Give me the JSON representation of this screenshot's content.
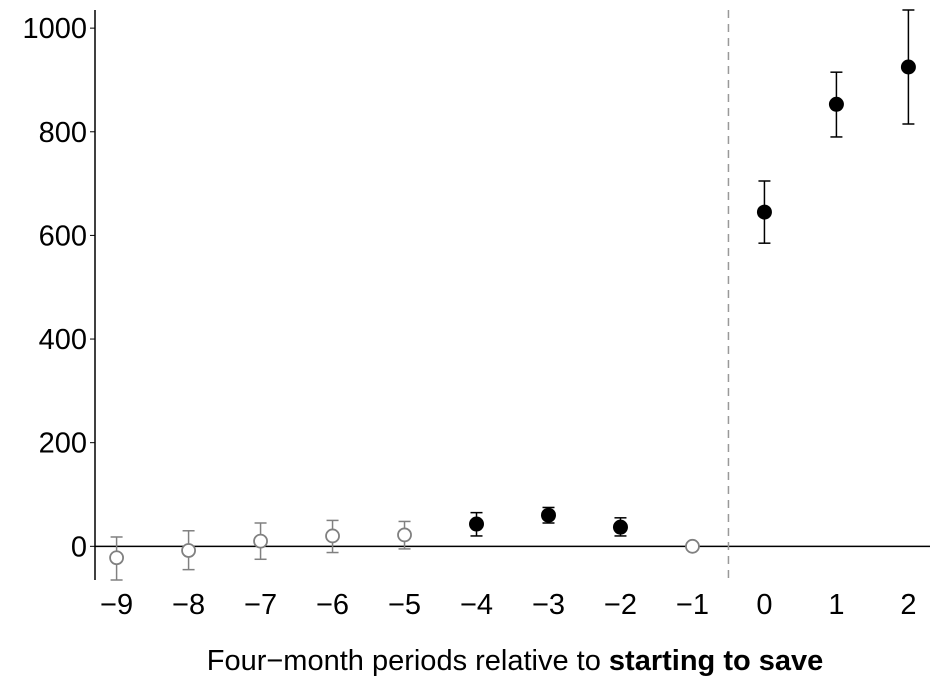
{
  "chart_data": {
    "type": "scatter",
    "title": "",
    "xlabel_parts": {
      "normal": "Four−month periods relative to ",
      "bold": "starting to save"
    },
    "ylabel": "",
    "x_ticks": [
      "−9",
      "−8",
      "−7",
      "−6",
      "−5",
      "−4",
      "−3",
      "−2",
      "−1",
      "0",
      "1",
      "2"
    ],
    "y_ticks": [
      "0",
      "200",
      "400",
      "600",
      "800",
      "1000"
    ],
    "x_values": [
      -9,
      -8,
      -7,
      -6,
      -5,
      -4,
      -3,
      -2,
      -1,
      0,
      1,
      2
    ],
    "xlim": [
      -9.3,
      2.3
    ],
    "ylim": [
      -65,
      1035
    ],
    "grid": false,
    "reference_lines": {
      "horizontal_y": 0,
      "vertical_dashed_x": -0.5
    },
    "colors": {
      "hollow_marker": "#808080",
      "filled_marker": "#000000",
      "axis": "#000000",
      "dashed_line": "#999999"
    },
    "points": [
      {
        "x": -9,
        "y": -22,
        "lo": -65,
        "hi": 18,
        "style": "hollow"
      },
      {
        "x": -8,
        "y": -8,
        "lo": -45,
        "hi": 30,
        "style": "hollow"
      },
      {
        "x": -7,
        "y": 10,
        "lo": -25,
        "hi": 45,
        "style": "hollow"
      },
      {
        "x": -6,
        "y": 20,
        "lo": -12,
        "hi": 50,
        "style": "hollow"
      },
      {
        "x": -5,
        "y": 22,
        "lo": -5,
        "hi": 48,
        "style": "hollow"
      },
      {
        "x": -4,
        "y": 43,
        "lo": 20,
        "hi": 65,
        "style": "filled"
      },
      {
        "x": -3,
        "y": 60,
        "lo": 45,
        "hi": 75,
        "style": "filled"
      },
      {
        "x": -2,
        "y": 37,
        "lo": 20,
        "hi": 55,
        "style": "filled"
      },
      {
        "x": -1,
        "y": 0,
        "lo": 0,
        "hi": 0,
        "style": "hollow"
      },
      {
        "x": 0,
        "y": 645,
        "lo": 585,
        "hi": 705,
        "style": "filled"
      },
      {
        "x": 1,
        "y": 853,
        "lo": 790,
        "hi": 915,
        "style": "filled"
      },
      {
        "x": 2,
        "y": 925,
        "lo": 815,
        "hi": 1035,
        "style": "filled"
      }
    ]
  }
}
